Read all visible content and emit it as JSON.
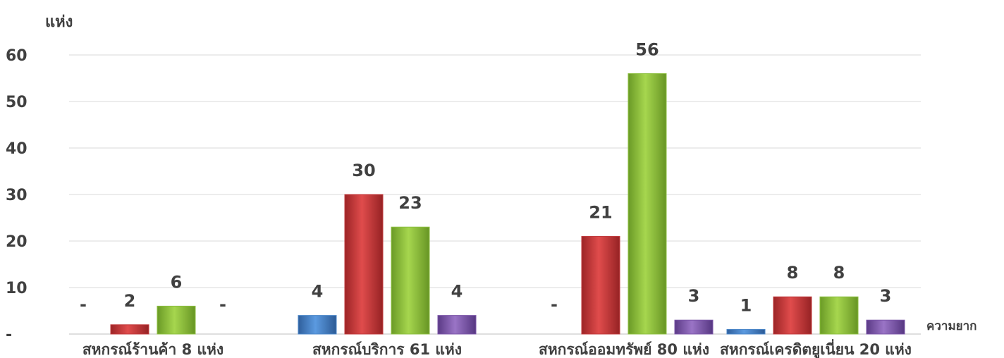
{
  "chart_data": {
    "type": "bar",
    "ylabel": "แห่ง",
    "xlabel": "ความยาก",
    "ylim": [
      0,
      60
    ],
    "yticks": [
      {
        "value": 0,
        "label": "-"
      },
      {
        "value": 10,
        "label": "10"
      },
      {
        "value": 20,
        "label": "20"
      },
      {
        "value": 30,
        "label": "30"
      },
      {
        "value": 40,
        "label": "40"
      },
      {
        "value": 50,
        "label": "50"
      },
      {
        "value": 60,
        "label": "60"
      }
    ],
    "grid": true,
    "categories": [
      "สหกรณ์ร้านค้า 8 แห่ง",
      "สหกรณ์บริการ 61 แห่ง",
      "สหกรณ์ออมทรัพย์ 80 แห่ง",
      "สหกรณ์เครดิตยูเนี่ยน 20 แห่ง"
    ],
    "series": [
      {
        "color": "#4a86c8",
        "values": [
          0,
          4,
          0,
          1
        ],
        "labels": [
          "-",
          "4",
          "-",
          "1"
        ]
      },
      {
        "color": "#c0393b",
        "values": [
          2,
          30,
          21,
          8
        ],
        "labels": [
          "2",
          "30",
          "21",
          "8"
        ]
      },
      {
        "color": "#8cbf3f",
        "values": [
          6,
          23,
          56,
          8
        ],
        "labels": [
          "6",
          "23",
          "56",
          "8"
        ]
      },
      {
        "color": "#7b56a8",
        "values": [
          0,
          4,
          3,
          3
        ],
        "labels": [
          "-",
          "4",
          "3",
          "3"
        ]
      }
    ]
  }
}
